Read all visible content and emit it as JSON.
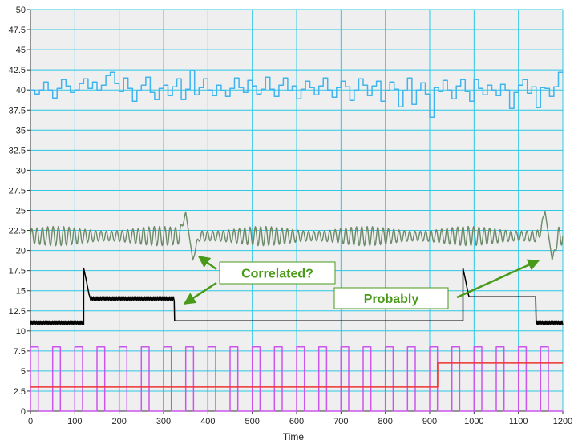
{
  "chart_data": {
    "type": "line",
    "title": "",
    "xlabel": "Time",
    "ylabel": "",
    "xlim": [
      0,
      1200
    ],
    "ylim": [
      0,
      50
    ],
    "x_ticks": [
      0,
      100,
      200,
      300,
      400,
      500,
      600,
      700,
      800,
      900,
      1000,
      1100,
      1200
    ],
    "y_ticks": [
      0,
      2.5,
      5,
      7.5,
      10,
      12.5,
      15,
      17.5,
      20,
      22.5,
      25,
      27.5,
      30,
      32.5,
      35,
      37.5,
      40,
      42.5,
      45,
      47.5,
      50
    ],
    "grid": true,
    "series": [
      {
        "color": "#3fb4ee",
        "style": "step",
        "base": 40,
        "values": [
          [
            0,
            40
          ],
          [
            10,
            39.5
          ],
          [
            20,
            40
          ],
          [
            30,
            41
          ],
          [
            40,
            40
          ],
          [
            50,
            39
          ],
          [
            60,
            40.2
          ],
          [
            70,
            41.3
          ],
          [
            80,
            40.5
          ],
          [
            90,
            39.7
          ],
          [
            100,
            40
          ],
          [
            110,
            40.8
          ],
          [
            120,
            41.4
          ],
          [
            130,
            40.2
          ],
          [
            140,
            41
          ],
          [
            150,
            40
          ],
          [
            160,
            40.6
          ],
          [
            170,
            41.8
          ],
          [
            180,
            42.2
          ],
          [
            190,
            40.8
          ],
          [
            200,
            39.8
          ],
          [
            210,
            41.5
          ],
          [
            220,
            40.2
          ],
          [
            230,
            38.6
          ],
          [
            240,
            39.9
          ],
          [
            250,
            40.6
          ],
          [
            260,
            41.6
          ],
          [
            270,
            39.7
          ],
          [
            280,
            38.8
          ],
          [
            290,
            40.2
          ],
          [
            300,
            40.6
          ],
          [
            310,
            39.3
          ],
          [
            320,
            40.4
          ],
          [
            330,
            41.4
          ],
          [
            340,
            38.8
          ],
          [
            350,
            40.1
          ],
          [
            360,
            42.4
          ],
          [
            370,
            39.4
          ],
          [
            380,
            40.3
          ],
          [
            390,
            41.4
          ],
          [
            400,
            40
          ],
          [
            410,
            39.3
          ],
          [
            420,
            40.6
          ],
          [
            430,
            39.9
          ],
          [
            440,
            39.2
          ],
          [
            450,
            40.2
          ],
          [
            460,
            41.5
          ],
          [
            470,
            40.3
          ],
          [
            480,
            39.7
          ],
          [
            490,
            41.2
          ],
          [
            500,
            40.5
          ],
          [
            510,
            39.5
          ],
          [
            520,
            40.1
          ],
          [
            530,
            41.6
          ],
          [
            540,
            40.1
          ],
          [
            550,
            39.2
          ],
          [
            560,
            40.6
          ],
          [
            570,
            41.5
          ],
          [
            580,
            39.9
          ],
          [
            590,
            40.5
          ],
          [
            600,
            38.9
          ],
          [
            610,
            40.1
          ],
          [
            620,
            41.1
          ],
          [
            630,
            40.3
          ],
          [
            640,
            39.4
          ],
          [
            650,
            40.5
          ],
          [
            660,
            41.5
          ],
          [
            670,
            40
          ],
          [
            680,
            39.1
          ],
          [
            690,
            40.3
          ],
          [
            700,
            41.1
          ],
          [
            710,
            40.4
          ],
          [
            720,
            38.7
          ],
          [
            730,
            40
          ],
          [
            740,
            41.4
          ],
          [
            750,
            40.6
          ],
          [
            760,
            39.3
          ],
          [
            770,
            40.5
          ],
          [
            780,
            41.1
          ],
          [
            790,
            38.6
          ],
          [
            800,
            39.9
          ],
          [
            810,
            41
          ],
          [
            820,
            40.1
          ],
          [
            830,
            37.9
          ],
          [
            840,
            39.9
          ],
          [
            850,
            41.5
          ],
          [
            860,
            38.2
          ],
          [
            870,
            40
          ],
          [
            880,
            40.9
          ],
          [
            890,
            39.5
          ],
          [
            900,
            36.6
          ],
          [
            910,
            40.3
          ],
          [
            920,
            39.8
          ],
          [
            930,
            41.2
          ],
          [
            940,
            40
          ],
          [
            950,
            38.9
          ],
          [
            960,
            40.5
          ],
          [
            970,
            41.3
          ],
          [
            980,
            39.8
          ],
          [
            990,
            38.6
          ],
          [
            1000,
            41.3
          ],
          [
            1010,
            40.2
          ],
          [
            1020,
            39.4
          ],
          [
            1030,
            40.6
          ],
          [
            1040,
            40
          ],
          [
            1050,
            39.3
          ],
          [
            1060,
            40.7
          ],
          [
            1070,
            40
          ],
          [
            1080,
            37.7
          ],
          [
            1090,
            39.7
          ],
          [
            1100,
            40.6
          ],
          [
            1110,
            41.3
          ],
          [
            1120,
            39.6
          ],
          [
            1130,
            40.4
          ],
          [
            1140,
            37.8
          ],
          [
            1150,
            40.3
          ],
          [
            1160,
            40.2
          ],
          [
            1170,
            39.2
          ],
          [
            1180,
            40.4
          ],
          [
            1190,
            42.2
          ],
          [
            1200,
            42.2
          ]
        ]
      },
      {
        "color": "#6d8a6a",
        "style": "oscillation",
        "center": 21.8,
        "amplitude": 1.2,
        "period": 12,
        "events": [
          [
            350,
            24.8,
            18.8
          ],
          [
            1160,
            24.9,
            18.8
          ]
        ]
      },
      {
        "color": "#000000",
        "style": "segments",
        "segments": [
          [
            0,
            120,
            11
          ],
          [
            120,
            325,
            14
          ],
          [
            325,
            975,
            11
          ],
          [
            975,
            1140,
            14
          ],
          [
            1140,
            1200,
            11
          ]
        ],
        "spikes": [
          120,
          975
        ],
        "spike_peak": 17.8
      },
      {
        "color": "#cc55ee",
        "style": "pulse",
        "high": 8,
        "low": 0,
        "period": 50,
        "duty": 0.35
      },
      {
        "color": "#ee3333",
        "style": "step",
        "values": [
          [
            0,
            3
          ],
          [
            918,
            3
          ],
          [
            918,
            6
          ],
          [
            1200,
            6
          ]
        ]
      }
    ],
    "annotations": [
      {
        "text": "Correlated?"
      },
      {
        "text": "Probably"
      }
    ]
  }
}
